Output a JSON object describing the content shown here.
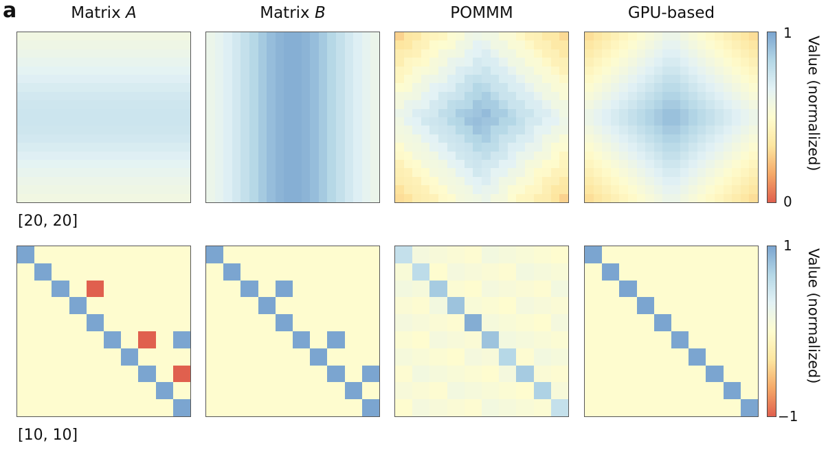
{
  "panel_letter": "a",
  "columns": [
    {
      "title": "Matrix ",
      "title_italic": "A"
    },
    {
      "title": "Matrix ",
      "title_italic": "B"
    },
    {
      "title": "POMMM",
      "title_italic": ""
    },
    {
      "title": "GPU-based",
      "title_italic": ""
    }
  ],
  "rows": [
    {
      "label": "[20, 20]",
      "colorbar": {
        "max_label": "1",
        "min_label": "0",
        "label": "Value (normalized)"
      }
    },
    {
      "label": "[10, 10]",
      "colorbar": {
        "max_label": "1",
        "min_label": "−1",
        "label": "Value (normalized)"
      }
    }
  ],
  "colors": {
    "colormap": [
      "#e0604e",
      "#f5a968",
      "#fde6a0",
      "#fefccf",
      "#e3f2f5",
      "#b4d7e6",
      "#7ba5d0"
    ],
    "frame": "#555555"
  },
  "chart_data": [
    {
      "type": "heatmap",
      "title": "[20, 20] matrix multiplication",
      "panels": [
        "Matrix A",
        "Matrix B",
        "POMMM",
        "GPU-based"
      ],
      "size": [
        20,
        20
      ],
      "description": {
        "Matrix A": "row-wise gradient, peaking (~0.75) at center rows, ~0.55 at top/bottom edges",
        "Matrix B": "column-wise gradient, peaking (~0.95) at center columns, ~0.55 at left/right edges",
        "POMMM": "diamond-shaped product peaking (~0.95) at center, decreasing to ~0.3 at corners",
        "GPU-based": "diamond-shaped product peaking (~0.92) at center, decreasing to ~0.35 at corners"
      },
      "colorbar": {
        "label": "Value (normalized)",
        "range": [
          0,
          1
        ]
      }
    },
    {
      "type": "heatmap",
      "title": "[10, 10] matrix multiplication",
      "panels": [
        "Matrix A",
        "Matrix B",
        "POMMM",
        "GPU-based"
      ],
      "size": [
        10,
        10
      ],
      "matrices": {
        "Matrix A": {
          "diagonal": 1,
          "extra": [
            [
              2,
              4,
              -1
            ],
            [
              5,
              7,
              -1
            ],
            [
              5,
              9,
              1
            ],
            [
              7,
              9,
              -1
            ]
          ]
        },
        "Matrix B": {
          "diagonal": 1,
          "extra": [
            [
              2,
              4,
              1
            ],
            [
              5,
              7,
              1
            ],
            [
              7,
              9,
              1
            ]
          ]
        },
        "POMMM": {
          "diagonal_values": [
            0.55,
            0.6,
            0.75,
            0.8,
            0.95,
            0.8,
            0.65,
            0.75,
            0.7,
            0.55
          ],
          "off_diagonal_approx": 0.05
        },
        "GPU-based": {
          "diagonal": 1,
          "extra": []
        }
      },
      "colorbar": {
        "label": "Value (normalized)",
        "range": [
          -1,
          1
        ]
      }
    }
  ]
}
